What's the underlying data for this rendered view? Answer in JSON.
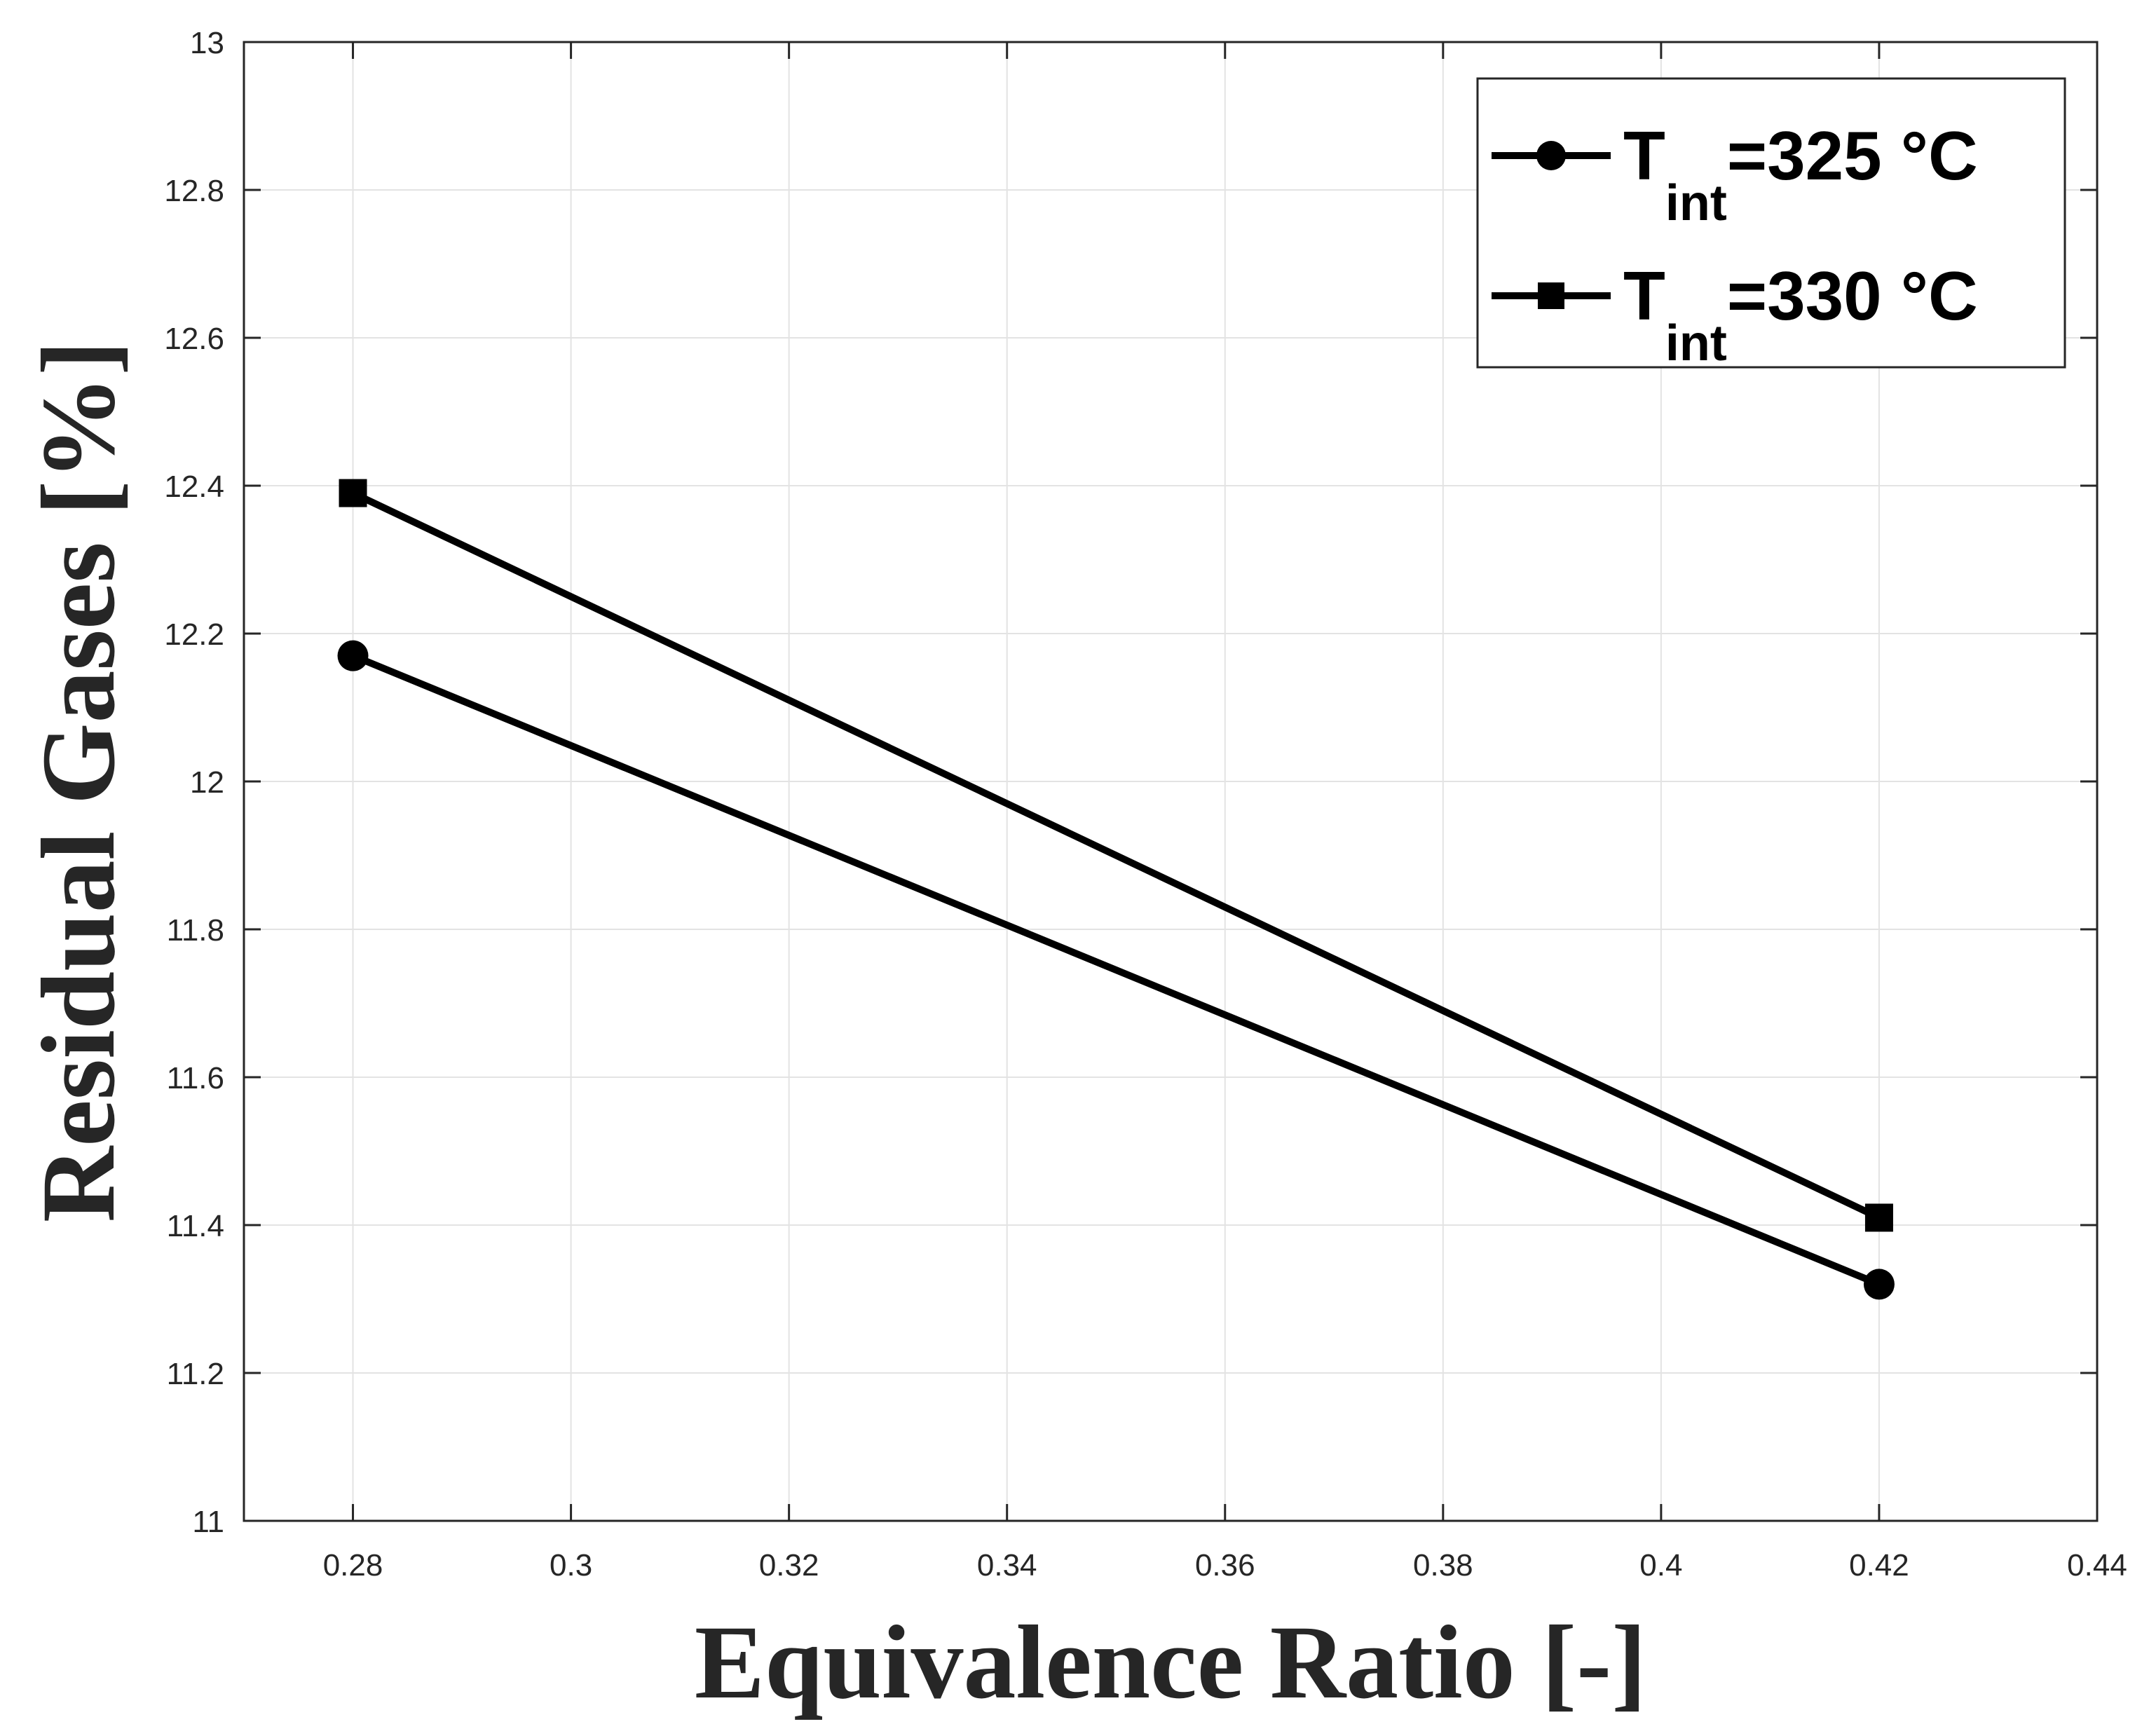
{
  "chart_data": {
    "type": "line",
    "xlabel": "Equivalence Ratio [-]",
    "ylabel": "Residual Gases [%]",
    "xlim": [
      0.27,
      0.44
    ],
    "ylim": [
      11,
      13
    ],
    "xticks": [
      "0.28",
      "0.3",
      "0.32",
      "0.34",
      "0.36",
      "0.38",
      "0.4",
      "0.42",
      "0.44"
    ],
    "xtick_values": [
      0.28,
      0.3,
      0.32,
      0.34,
      0.36,
      0.38,
      0.4,
      0.42,
      0.44
    ],
    "yticks": [
      "11",
      "11.2",
      "11.4",
      "11.6",
      "11.8",
      "12",
      "12.2",
      "12.4",
      "12.6",
      "12.8",
      "13"
    ],
    "ytick_values": [
      11,
      11.2,
      11.4,
      11.6,
      11.8,
      12,
      12.2,
      12.4,
      12.6,
      12.8,
      13
    ],
    "grid": true,
    "legend_position": "top-right",
    "series": [
      {
        "name_main": "T",
        "name_sub": "int",
        "name_rest": "=325 °C",
        "marker": "circle",
        "color": "#000000",
        "x": [
          0.28,
          0.42
        ],
        "y": [
          12.17,
          11.32
        ]
      },
      {
        "name_main": "T",
        "name_sub": "int",
        "name_rest": "=330 °C",
        "marker": "square",
        "color": "#000000",
        "x": [
          0.28,
          0.42
        ],
        "y": [
          12.39,
          11.41
        ]
      }
    ]
  }
}
